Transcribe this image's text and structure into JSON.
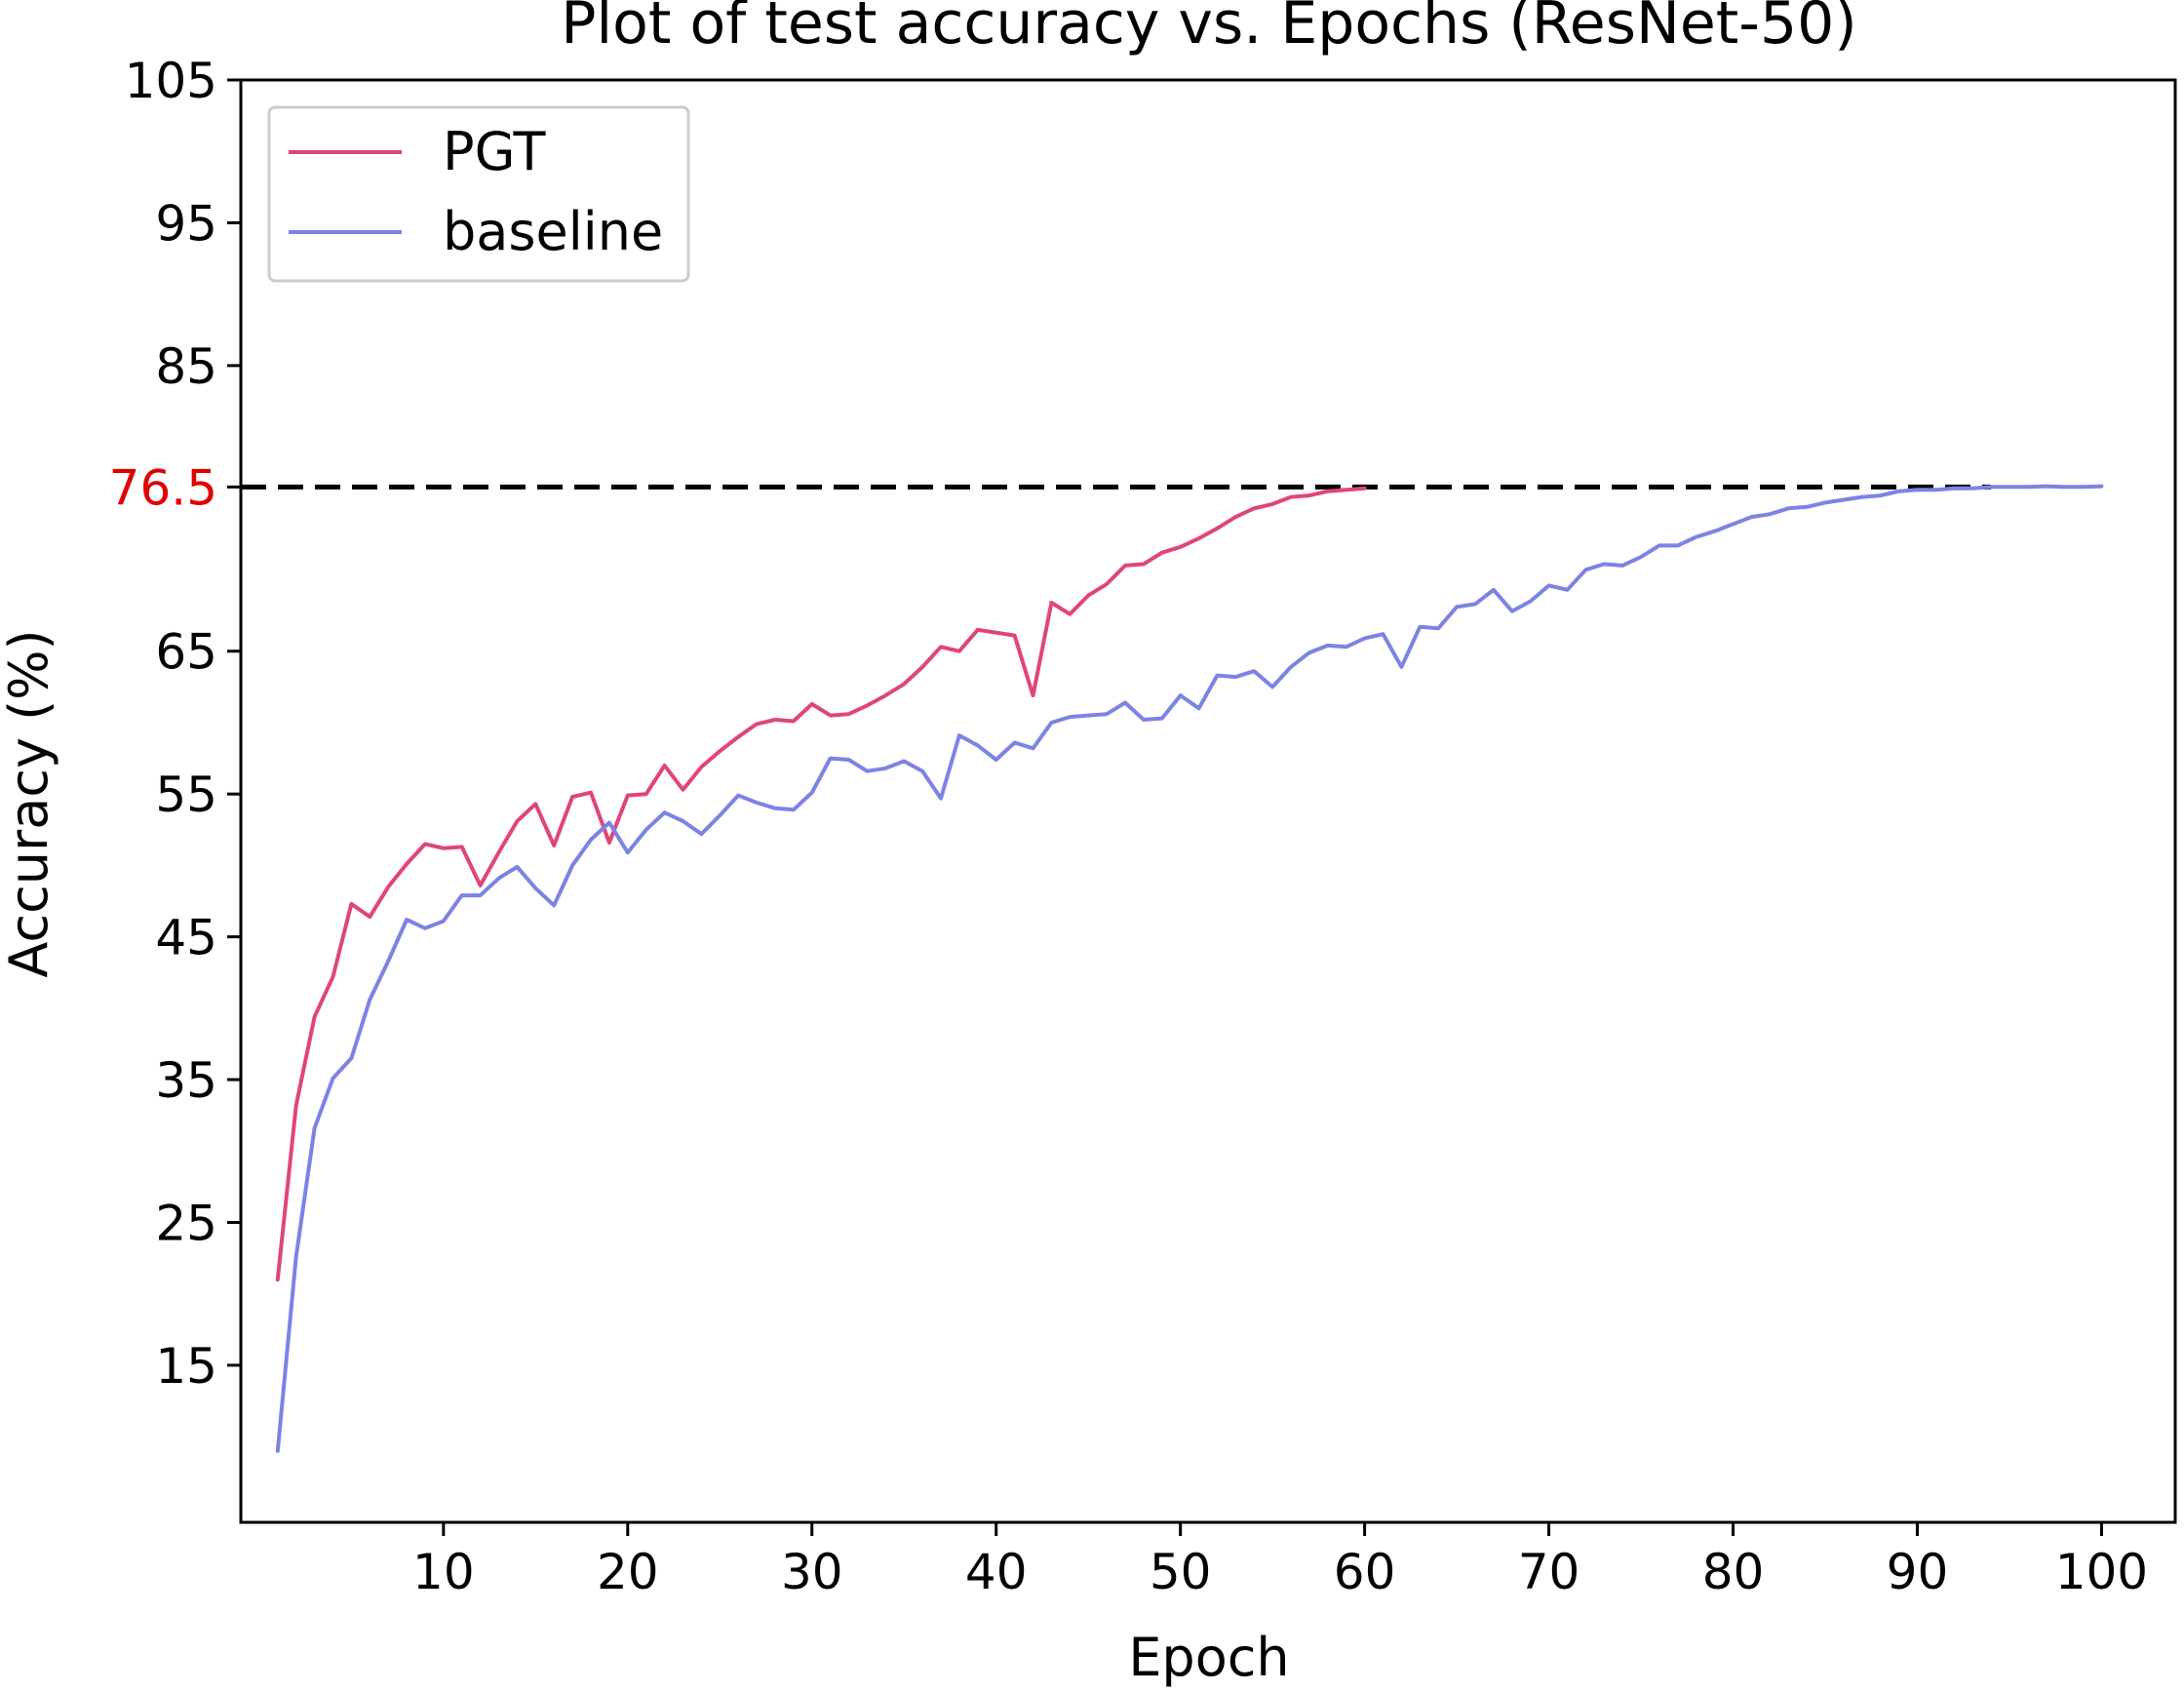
{
  "chart_data": {
    "type": "line",
    "title": "Plot of test accuracy vs. Epochs (ResNet-50)",
    "xlabel": "Epoch",
    "ylabel": "Accuracy (%)",
    "xlim": [
      -1,
      104
    ],
    "ylim": [
      4,
      105
    ],
    "xticks": [
      10,
      20,
      30,
      40,
      50,
      60,
      70,
      80,
      90,
      100
    ],
    "yticks": [
      15,
      25,
      35,
      45,
      55,
      65,
      85,
      95,
      105
    ],
    "highlight_tick": {
      "value": 76.5,
      "label": "76.5",
      "color": "#e00000"
    },
    "reference_line": {
      "y": 76.5,
      "x_from": -1,
      "x_to": 94,
      "style": "dashed",
      "color": "#000000"
    },
    "grid": false,
    "legend": {
      "position": "top-left",
      "entries": [
        "PGT",
        "baseline"
      ]
    },
    "series": [
      {
        "name": "PGT",
        "color": "#e0457a",
        "x": [
          1,
          2,
          3,
          4,
          5,
          6,
          7,
          8,
          9,
          10,
          11,
          12,
          13,
          14,
          15,
          16,
          17,
          18,
          19,
          20,
          21,
          22,
          23,
          24,
          25,
          26,
          27,
          28,
          29,
          30,
          31,
          32,
          33,
          34,
          35,
          36,
          37,
          38,
          39,
          40,
          41,
          42,
          43,
          44,
          45,
          46,
          47,
          48,
          49,
          50,
          51,
          52,
          53,
          54,
          55,
          56,
          57,
          58,
          59,
          60
        ],
        "y": [
          21,
          33.2,
          39.4,
          42.2,
          47.3,
          46.4,
          48.5,
          50.1,
          51.5,
          51.2,
          51.3,
          48.6,
          50.9,
          53.1,
          54.3,
          51.4,
          54.8,
          55.1,
          51.6,
          54.9,
          55,
          57,
          55.3,
          56.9,
          58,
          59,
          59.9,
          60.2,
          60.1,
          61.3,
          60.5,
          60.6,
          61.2,
          61.9,
          62.7,
          63.9,
          65.3,
          65,
          66.5,
          66.3,
          66.1,
          61.9,
          68.4,
          67.6,
          68.9,
          69.7,
          71,
          71.1,
          71.9,
          72.3,
          72.9,
          73.6,
          74.4,
          75,
          75.3,
          75.8,
          75.9,
          76.2,
          76.3,
          76.4
        ]
      },
      {
        "name": "baseline",
        "color": "#7b84e3",
        "x": [
          1,
          2,
          3,
          4,
          5,
          6,
          7,
          8,
          9,
          10,
          11,
          12,
          13,
          14,
          15,
          16,
          17,
          18,
          19,
          20,
          21,
          22,
          23,
          24,
          25,
          26,
          27,
          28,
          29,
          30,
          31,
          32,
          33,
          34,
          35,
          36,
          37,
          38,
          39,
          40,
          41,
          42,
          43,
          44,
          45,
          46,
          47,
          48,
          49,
          50,
          51,
          52,
          53,
          54,
          55,
          56,
          57,
          58,
          59,
          60,
          61,
          62,
          63,
          64,
          65,
          66,
          67,
          68,
          69,
          70,
          71,
          72,
          73,
          74,
          75,
          76,
          77,
          78,
          79,
          80,
          81,
          82,
          83,
          84,
          85,
          86,
          87,
          88,
          89,
          90,
          91,
          92,
          93,
          94,
          95,
          96,
          97,
          98,
          99,
          100
        ],
        "y": [
          9,
          22.6,
          31.6,
          35.1,
          36.5,
          40.6,
          43.3,
          46.2,
          45.6,
          46.1,
          47.9,
          47.9,
          49.1,
          49.9,
          48.4,
          47.2,
          50,
          51.8,
          53,
          50.9,
          52.5,
          53.7,
          53.1,
          52.2,
          53.5,
          54.9,
          54.4,
          54,
          53.9,
          55.1,
          57.5,
          57.4,
          56.6,
          56.8,
          57.3,
          56.6,
          54.7,
          59.1,
          58.4,
          57.4,
          58.6,
          58.2,
          60,
          60.4,
          60.5,
          60.6,
          61.4,
          60.2,
          60.3,
          61.9,
          61,
          63.3,
          63.2,
          63.6,
          62.5,
          63.9,
          64.9,
          65.4,
          65.3,
          65.9,
          66.2,
          63.9,
          66.7,
          66.6,
          68.1,
          68.3,
          69.3,
          67.8,
          68.5,
          69.6,
          69.3,
          70.7,
          71.1,
          71,
          71.6,
          72.4,
          72.4,
          73,
          73.4,
          73.9,
          74.4,
          74.6,
          75,
          75.1,
          75.4,
          75.6,
          75.8,
          75.9,
          76.2,
          76.3,
          76.3,
          76.4,
          76.4,
          76.5,
          76.5,
          76.5,
          76.55,
          76.5,
          76.5,
          76.55
        ]
      }
    ]
  }
}
